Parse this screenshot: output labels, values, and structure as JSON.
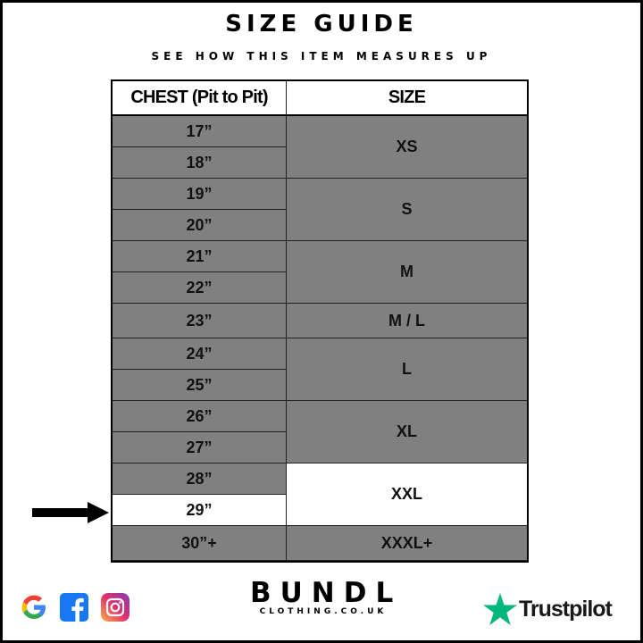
{
  "title": "SIZE GUIDE",
  "subtitle": "SEE HOW THIS ITEM MEASURES UP",
  "table": {
    "headers": [
      "CHEST (Pit to Pit)",
      "SIZE"
    ],
    "chest": [
      "17”",
      "18”",
      "19”",
      "20”",
      "21”",
      "22”",
      "23”",
      "24”",
      "25”",
      "26”",
      "27”",
      "28”",
      "29”",
      "30”+"
    ],
    "sizes": [
      {
        "label": "XS",
        "rows": [
          0,
          1
        ]
      },
      {
        "label": "S",
        "rows": [
          2,
          3
        ]
      },
      {
        "label": "M",
        "rows": [
          4,
          5
        ]
      },
      {
        "label": "M / L",
        "rows": [
          6,
          6
        ]
      },
      {
        "label": "L",
        "rows": [
          7,
          8
        ]
      },
      {
        "label": "XL",
        "rows": [
          9,
          10
        ]
      },
      {
        "label": "XXL",
        "rows": [
          11,
          12
        ]
      },
      {
        "label": "XXXL+",
        "rows": [
          13,
          13
        ]
      }
    ],
    "highlighted_chest": "29”",
    "highlighted_size": "XXL",
    "cell_color": "#808080",
    "highlight_color": "#ffffff"
  },
  "footer": {
    "social_icons": [
      "google-icon",
      "facebook-icon",
      "instagram-icon"
    ],
    "brand": "BUNDL",
    "brand_sub": "CLOTHING.CO.UK",
    "trustpilot": "Trustpilot",
    "trustpilot_color": "#00b67a"
  }
}
